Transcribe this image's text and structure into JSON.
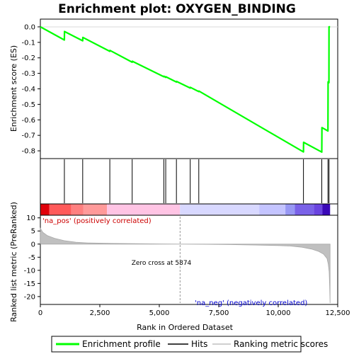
{
  "chart_data": {
    "type": "line",
    "title": "Enrichment plot: OXYGEN_BINDING",
    "xlabel": "Rank in Ordered Dataset",
    "xlim": [
      0,
      12500
    ],
    "x_ticks": [
      0,
      2500,
      5000,
      7500,
      10000,
      12500
    ],
    "x_tick_labels": [
      "0",
      "2,500",
      "5,000",
      "7,500",
      "10,000",
      "12,500"
    ],
    "top_panel": {
      "ylabel": "Enrichment score (ES)",
      "ylim": [
        -0.85,
        0.05
      ],
      "y_ticks": [
        0.0,
        -0.1,
        -0.2,
        -0.3,
        -0.4,
        -0.5,
        -0.6,
        -0.7,
        -0.8
      ],
      "y_tick_labels": [
        "0.0",
        "-0.1",
        "-0.2",
        "-0.3",
        "-0.4",
        "-0.5",
        "-0.6",
        "-0.7",
        "-0.8"
      ],
      "series": [
        {
          "name": "Enrichment profile",
          "color": "#00ff00",
          "x": [
            0,
            1010,
            1015,
            1780,
            1785,
            2920,
            2925,
            3860,
            3865,
            5190,
            5195,
            5270,
            5275,
            5720,
            5725,
            6300,
            6305,
            6660,
            6665,
            11060,
            11065,
            11830,
            11835,
            12090,
            12095,
            12130,
            12135,
            12180
          ],
          "y": [
            0.0,
            -0.085,
            -0.03,
            -0.09,
            -0.068,
            -0.158,
            -0.152,
            -0.228,
            -0.222,
            -0.322,
            -0.318,
            -0.326,
            -0.322,
            -0.356,
            -0.352,
            -0.395,
            -0.39,
            -0.418,
            -0.414,
            -0.807,
            -0.745,
            -0.808,
            -0.65,
            -0.672,
            -0.355,
            -0.36,
            0.0,
            0.0
          ]
        }
      ]
    },
    "hits_panel": {
      "hit_ranks": [
        1010,
        1780,
        2920,
        3860,
        5190,
        5270,
        5720,
        6300,
        6660,
        11060,
        11830,
        12090,
        12135
      ]
    },
    "color_bar": {
      "segments": [
        {
          "from": 0,
          "to": 380,
          "color": "#e0000a"
        },
        {
          "from": 380,
          "to": 1300,
          "color": "#ff5a5a"
        },
        {
          "from": 1300,
          "to": 1800,
          "color": "#ff8080"
        },
        {
          "from": 1800,
          "to": 2800,
          "color": "#ff9a9a"
        },
        {
          "from": 2800,
          "to": 5870,
          "color": "#ffc4e4"
        },
        {
          "from": 5870,
          "to": 9200,
          "color": "#d8d8ff"
        },
        {
          "from": 9200,
          "to": 10300,
          "color": "#c4c4ff"
        },
        {
          "from": 10300,
          "to": 10700,
          "color": "#9898f4"
        },
        {
          "from": 10700,
          "to": 11500,
          "color": "#7a62e8"
        },
        {
          "from": 11500,
          "to": 11850,
          "color": "#6a44e0"
        },
        {
          "from": 11850,
          "to": 12180,
          "color": "#3a08b8"
        }
      ]
    },
    "bottom_panel": {
      "ylabel": "Ranked list metric (PreRanked)",
      "ylim": [
        -23,
        11
      ],
      "y_ticks": [
        10,
        5,
        0,
        -5,
        -10,
        -15,
        -20
      ],
      "y_tick_labels": [
        "10",
        "5",
        "0",
        "-5",
        "-10",
        "-15",
        "-20"
      ],
      "series": [
        {
          "name": "Ranking metric scores",
          "color": "#c0c0c0",
          "x": [
            0,
            100,
            300,
            600,
            1000,
            1500,
            2000,
            3000,
            4000,
            5000,
            5874,
            7000,
            8000,
            9000,
            10000,
            10500,
            11000,
            11400,
            11700,
            11900,
            12050,
            12100,
            12140,
            12160,
            12180
          ],
          "y": [
            6.0,
            4.5,
            3.2,
            2.2,
            1.3,
            0.7,
            0.45,
            0.25,
            0.15,
            0.07,
            0.0,
            -0.1,
            -0.2,
            -0.35,
            -0.55,
            -0.75,
            -1.2,
            -1.9,
            -2.8,
            -3.8,
            -5.5,
            -7.5,
            -10.5,
            -16.0,
            -22.5
          ]
        }
      ],
      "annotations": {
        "positive": "'na_pos' (positively correlated)",
        "negative": "'na_neg' (negatively correlated)",
        "zero_cross": "Zero cross at 5874",
        "zero_cross_x": 5874
      }
    },
    "legend": {
      "entries": [
        "Enrichment profile",
        "Hits",
        "Ranking metric scores"
      ],
      "colors": [
        "#00ff00",
        "#000000",
        "#c0c0c0"
      ],
      "placement": "bottom"
    }
  }
}
